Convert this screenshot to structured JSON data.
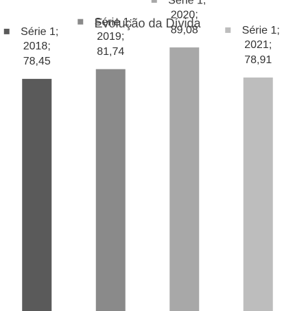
{
  "chart_data": {
    "type": "bar",
    "title": "Evolução da Dívida",
    "series": [
      {
        "name": "Série 1",
        "colors": [
          "#5a5a5a",
          "#8a8a8a",
          "#a8a8a8",
          "#bdbdbd"
        ],
        "values": [
          78.45,
          81.74,
          89.08,
          78.91
        ],
        "value_labels": [
          "78,45",
          "81,74",
          "89,08",
          "78,91"
        ]
      }
    ],
    "categories": [
      "2018",
      "2019",
      "2020",
      "2021"
    ],
    "ylim": [
      0,
      100
    ]
  }
}
